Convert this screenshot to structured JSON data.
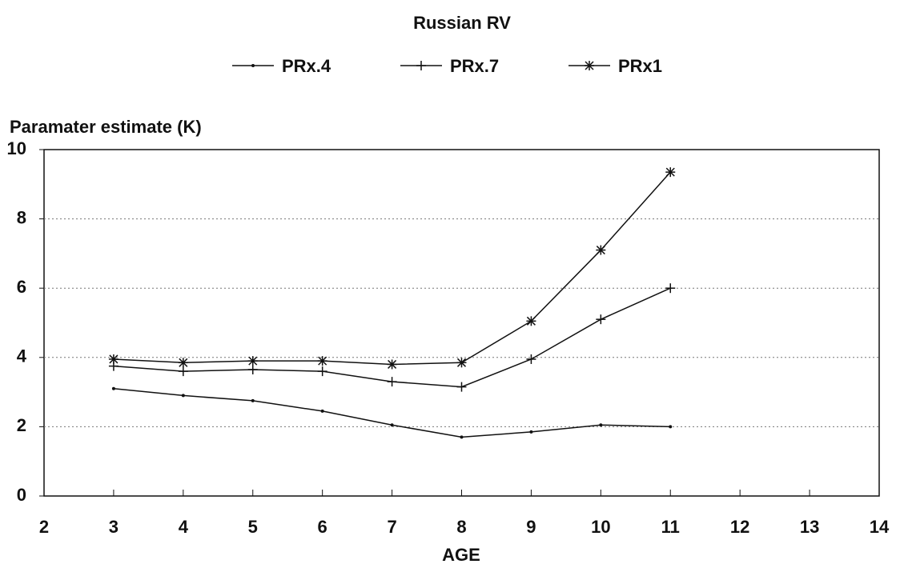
{
  "chart_data": {
    "type": "line",
    "title": "Russian RV",
    "ylabel": "Paramater estimate (K)",
    "xlabel": "AGE",
    "x": [
      3,
      4,
      5,
      6,
      7,
      8,
      9,
      10,
      11
    ],
    "series": [
      {
        "name": "PRx.4",
        "color": "#111111",
        "marker": "dot",
        "values": [
          3.1,
          2.9,
          2.75,
          2.45,
          2.05,
          1.7,
          1.85,
          2.05,
          2.0
        ]
      },
      {
        "name": "PRx.7",
        "color": "#111111",
        "marker": "plus",
        "values": [
          3.75,
          3.6,
          3.65,
          3.6,
          3.3,
          3.15,
          3.95,
          5.1,
          6.0
        ]
      },
      {
        "name": "PRx1",
        "color": "#111111",
        "marker": "star",
        "values": [
          3.95,
          3.85,
          3.9,
          3.9,
          3.8,
          3.85,
          5.05,
          7.1,
          9.35
        ]
      }
    ],
    "xlim": [
      2,
      14
    ],
    "xticks": [
      2,
      3,
      4,
      5,
      6,
      7,
      8,
      9,
      10,
      11,
      12,
      13,
      14
    ],
    "ylim": [
      0,
      10
    ],
    "yticks": [
      0,
      2,
      4,
      6,
      8,
      10
    ],
    "grid": true,
    "legend": "top"
  }
}
